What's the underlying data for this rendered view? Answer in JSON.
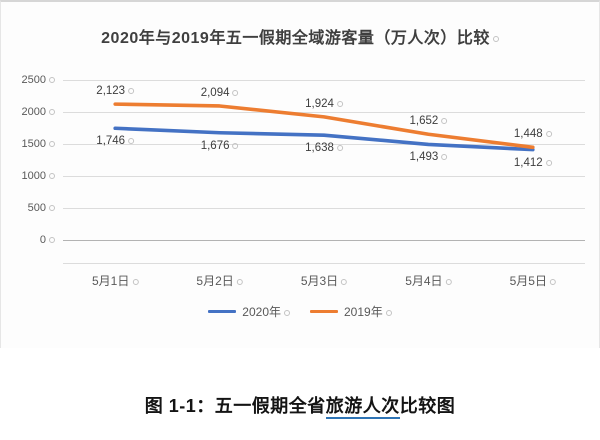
{
  "chart_data": {
    "type": "line",
    "title": "2020年与2019年五一假期全域游客量（万人次）比较",
    "categories": [
      "5月1日",
      "5月2日",
      "5月3日",
      "5月4日",
      "5月5日"
    ],
    "series": [
      {
        "name": "2020年",
        "color": "#4472C4",
        "values": [
          1746,
          1676,
          1638,
          1493,
          1412
        ],
        "label_position": "below"
      },
      {
        "name": "2019年",
        "color": "#ED7D31",
        "values": [
          2123,
          2094,
          1924,
          1652,
          1448
        ],
        "label_position": "above"
      }
    ],
    "xlabel": "",
    "ylabel": "",
    "ylim": [
      0,
      2500
    ],
    "ytick_step": 500,
    "grid": true,
    "legend_position": "bottom",
    "data_labels": true
  },
  "caption": {
    "prefix": "图 1-1：五一假期全省",
    "underlined": "旅游人次",
    "suffix": "比较图"
  },
  "colors": {
    "series_2020": "#4472C4",
    "series_2019": "#ED7D31",
    "gridline": "#dcdcdc",
    "axis_text": "#595959",
    "caption_underline": "#2e74b5"
  }
}
